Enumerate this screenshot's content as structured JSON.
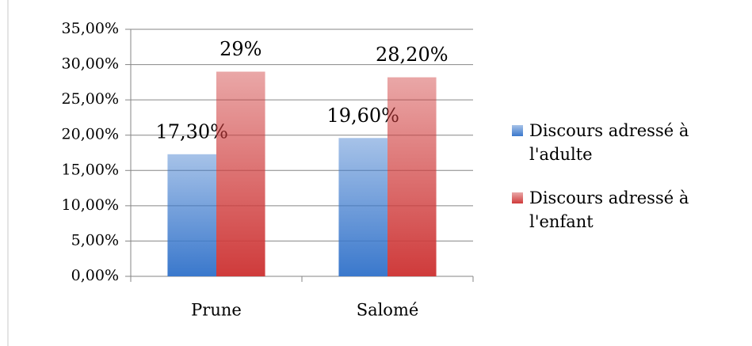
{
  "chart_data": {
    "type": "bar",
    "categories": [
      "Prune",
      "Salomé"
    ],
    "series": [
      {
        "name": "Discours adressé à l'adulte",
        "color": "#3a78cc",
        "values": [
          17.3,
          19.6
        ],
        "value_labels": [
          "17,30%",
          "19,60%"
        ]
      },
      {
        "name": "Discours adressé à l'enfant",
        "color": "#cf3b3b",
        "values": [
          29,
          28.2
        ],
        "value_labels": [
          "29%",
          "28,20%"
        ]
      }
    ],
    "ylim": [
      0,
      35
    ],
    "yticks": [
      {
        "value": 0,
        "label": "0,00%"
      },
      {
        "value": 5,
        "label": "5,00%"
      },
      {
        "value": 10,
        "label": "10,00%"
      },
      {
        "value": 15,
        "label": "15,00%"
      },
      {
        "value": 20,
        "label": "20,00%"
      },
      {
        "value": 25,
        "label": "25,00%"
      },
      {
        "value": 30,
        "label": "30,00%"
      },
      {
        "value": 35,
        "label": "35,00%"
      }
    ],
    "grid": true,
    "legend": "right"
  }
}
